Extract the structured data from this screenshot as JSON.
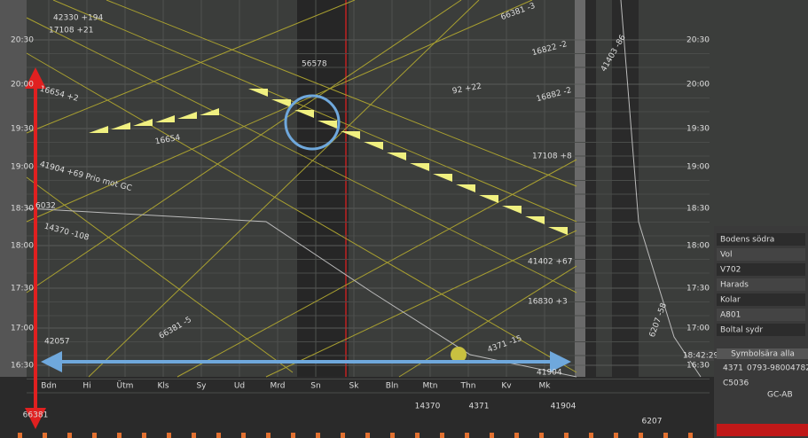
{
  "graph": {
    "time_labels": [
      "20:30",
      "20:00",
      "19:30",
      "19:00",
      "18:30",
      "18:00",
      "17:30",
      "17:00",
      "16:30"
    ],
    "clock": "18:42:29",
    "station_labels": [
      "Bdn",
      "Hi",
      "Ütm",
      "Kls",
      "Sy",
      "Ud",
      "Mrd",
      "Sn",
      "Sk",
      "Bln",
      "Mtn",
      "Thn",
      "Kv",
      "Mk"
    ],
    "train_labels": [
      "42330 +194",
      "17108 +21",
      "66381 -3",
      "56578",
      "16822 -2",
      "41403 -86",
      "16654 +2",
      "92 +22",
      "16882 -2",
      "16654",
      "17108 +8",
      "41904 +69 Prio mot GC",
      "6032",
      "14370 -108",
      "42057",
      "66381 -5",
      "41402 +67",
      "16830 +3",
      "4371 -15",
      "41904",
      "6207 -58"
    ],
    "bottom_counts": [
      "66381",
      "14370",
      "4371",
      "41904",
      "6207"
    ]
  },
  "panel": {
    "rows": [
      "Bodens södra",
      "Vol",
      "V702",
      "Harads",
      "Kolar",
      "A801",
      "Boltal sydr"
    ],
    "info_title": "Symbolsära alla",
    "train": "4371",
    "phone": "0793-98004782",
    "code": "C5036",
    "operator": "GC-AB"
  }
}
